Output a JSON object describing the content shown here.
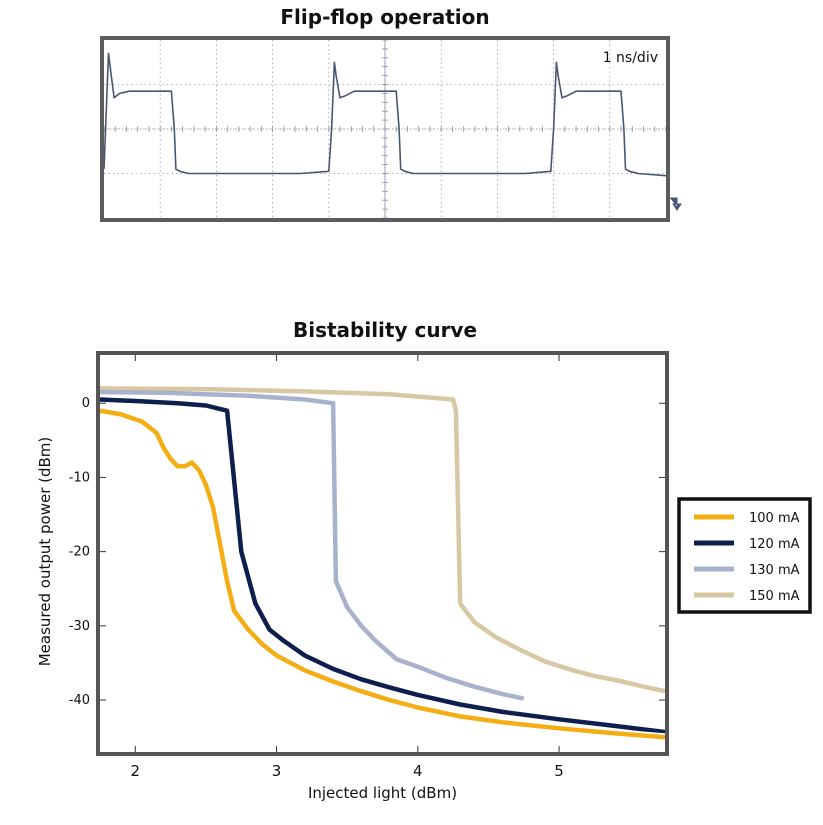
{
  "titles": {
    "top": "Flip-flop operation",
    "bottom": "Bistability curve"
  },
  "chart_data": [
    {
      "type": "line",
      "title": "Flip-flop operation",
      "annotation": "1 ns/div",
      "grid": true,
      "divisions": {
        "x": 10,
        "y": 4
      },
      "color": "#4a5573",
      "series": [
        {
          "x": [
            0,
            0.08,
            0.12,
            0.18,
            0.28,
            0.45,
            1.2,
            1.25,
            1.28,
            1.35,
            1.5,
            2.5,
            3.5,
            4.0,
            4.05,
            4.1,
            4.13,
            4.2,
            4.3,
            4.45,
            5.2,
            5.25,
            5.28,
            5.35,
            5.5,
            6.5,
            7.5,
            7.95,
            8.0,
            8.05,
            8.08,
            8.15,
            8.25,
            8.4,
            9.2,
            9.25,
            9.28,
            9.35,
            9.5,
            10.0
          ],
          "y": [
            0.1,
            2.7,
            2.3,
            1.7,
            1.8,
            1.85,
            1.85,
            1.0,
            0.1,
            0.05,
            0.0,
            0.0,
            0.0,
            0.05,
            1.0,
            2.5,
            2.2,
            1.7,
            1.75,
            1.85,
            1.85,
            1.0,
            0.1,
            0.05,
            0.0,
            0.0,
            0.0,
            0.05,
            1.0,
            2.5,
            2.2,
            1.7,
            1.75,
            1.85,
            1.85,
            1.0,
            0.1,
            0.05,
            0.0,
            -0.05
          ]
        }
      ]
    },
    {
      "type": "line",
      "title": "Bistability curve",
      "xlabel": "Injected light (dBm)",
      "ylabel": "Measured output power (dBm)",
      "xlim": [
        1.75,
        5.75
      ],
      "ylim": [
        -47,
        6.5
      ],
      "xticks": [
        2,
        3,
        4,
        5
      ],
      "yticks": [
        0,
        -10,
        -20,
        -30,
        -40
      ],
      "legend": "right",
      "grid": false,
      "series": [
        {
          "name": "100 mA",
          "color": "#f5ad14",
          "x": [
            1.75,
            1.9,
            2.05,
            2.15,
            2.2,
            2.25,
            2.3,
            2.35,
            2.4,
            2.45,
            2.5,
            2.55,
            2.6,
            2.65,
            2.7,
            2.8,
            2.9,
            3.0,
            3.2,
            3.4,
            3.6,
            3.8,
            4.0,
            4.3,
            4.6,
            5.0,
            5.4,
            5.75
          ],
          "y": [
            -1,
            -1.5,
            -2.5,
            -4,
            -6,
            -7.5,
            -8.5,
            -8.5,
            -8,
            -9,
            -11,
            -14,
            -19,
            -24,
            -28,
            -30.5,
            -32.5,
            -34,
            -36,
            -37.5,
            -38.8,
            -40,
            -41,
            -42.2,
            -43,
            -43.8,
            -44.5,
            -45
          ]
        },
        {
          "name": "120 mA",
          "color": "#0e1f4d",
          "x": [
            1.75,
            2.0,
            2.3,
            2.5,
            2.65,
            2.75,
            2.85,
            2.95,
            3.05,
            3.2,
            3.4,
            3.6,
            3.8,
            4.0,
            4.3,
            4.6,
            5.0,
            5.4,
            5.75
          ],
          "y": [
            0.5,
            0.3,
            0,
            -0.3,
            -1,
            -20,
            -27,
            -30.5,
            -32,
            -34,
            -35.8,
            -37.2,
            -38.3,
            -39.3,
            -40.6,
            -41.6,
            -42.6,
            -43.5,
            -44.3
          ]
        },
        {
          "name": "130 mA",
          "color": "#a8b2cc",
          "x": [
            1.75,
            2.2,
            2.8,
            3.2,
            3.4,
            3.42,
            3.5,
            3.6,
            3.7,
            3.85,
            4.0,
            4.2,
            4.4,
            4.6,
            4.75
          ],
          "y": [
            1.5,
            1.4,
            1,
            0.5,
            0,
            -24,
            -27.5,
            -30,
            -32,
            -34.5,
            -35.5,
            -37,
            -38.2,
            -39.2,
            -39.8
          ]
        },
        {
          "name": "150 mA",
          "color": "#d8c7a3",
          "x": [
            1.75,
            2.5,
            3.2,
            3.8,
            4.25,
            4.27,
            4.3,
            4.4,
            4.55,
            4.7,
            4.9,
            5.1,
            5.26,
            5.4,
            5.6,
            5.75
          ],
          "y": [
            2,
            1.9,
            1.6,
            1.2,
            0.5,
            -1,
            -27,
            -29.5,
            -31.5,
            -33,
            -34.8,
            -36,
            -36.8,
            -37.3,
            -38.2,
            -38.8
          ]
        }
      ]
    }
  ]
}
